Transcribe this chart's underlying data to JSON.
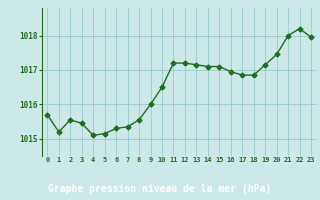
{
  "x": [
    0,
    1,
    2,
    3,
    4,
    5,
    6,
    7,
    8,
    9,
    10,
    11,
    12,
    13,
    14,
    15,
    16,
    17,
    18,
    19,
    20,
    21,
    22,
    23
  ],
  "y": [
    1015.7,
    1015.2,
    1015.55,
    1015.45,
    1015.1,
    1015.15,
    1015.3,
    1015.35,
    1015.55,
    1016.0,
    1016.5,
    1017.2,
    1017.2,
    1017.15,
    1017.1,
    1017.1,
    1016.95,
    1016.85,
    1016.85,
    1017.15,
    1017.45,
    1018.0,
    1018.2,
    1017.95
  ],
  "line_color": "#1e6e1e",
  "marker": "D",
  "markersize": 2.5,
  "linewidth": 1.0,
  "bg_color": "#cce8e8",
  "plot_bg_color": "#cce8e8",
  "bottom_bg_color": "#5a8a5a",
  "grid_color": "#99cccc",
  "xlabel": "Graphe pression niveau de la mer (hPa)",
  "xlabel_fontsize": 7,
  "tick_label_color": "#1e6e1e",
  "xlabel_color": "#ffffff",
  "ylim": [
    1014.5,
    1018.8
  ],
  "yticks": [
    1015,
    1016,
    1017,
    1018
  ],
  "xticks": [
    0,
    1,
    2,
    3,
    4,
    5,
    6,
    7,
    8,
    9,
    10,
    11,
    12,
    13,
    14,
    15,
    16,
    17,
    18,
    19,
    20,
    21,
    22,
    23
  ]
}
